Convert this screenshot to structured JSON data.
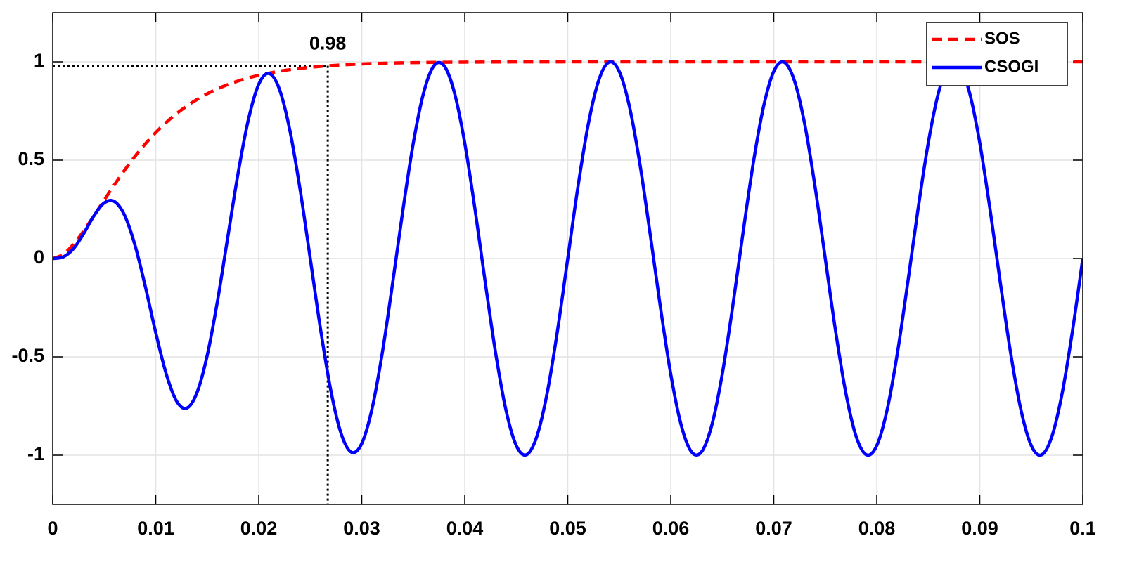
{
  "chart_data": {
    "type": "line",
    "x": [
      0,
      0.001,
      0.002,
      0.003,
      0.004,
      0.005,
      0.006,
      0.007,
      0.008,
      0.009,
      0.01,
      0.011,
      0.012,
      0.013,
      0.014,
      0.015,
      0.016,
      0.017,
      0.018,
      0.019,
      0.02,
      0.021,
      0.022,
      0.023,
      0.024,
      0.025,
      0.026,
      0.027,
      0.028,
      0.029,
      0.03,
      0.031,
      0.032,
      0.033,
      0.034,
      0.035,
      0.036,
      0.037,
      0.038,
      0.039,
      0.04,
      0.041,
      0.042,
      0.043,
      0.044,
      0.045,
      0.046,
      0.047,
      0.048,
      0.049,
      0.05,
      0.051,
      0.052,
      0.053,
      0.054,
      0.055,
      0.056,
      0.057,
      0.058,
      0.059,
      0.06,
      0.061,
      0.062,
      0.063,
      0.064,
      0.065,
      0.066,
      0.067,
      0.068,
      0.069,
      0.07,
      0.071,
      0.072,
      0.073,
      0.074,
      0.075,
      0.076,
      0.077,
      0.078,
      0.079,
      0.08,
      0.081,
      0.082,
      0.083,
      0.084,
      0.085,
      0.086,
      0.087,
      0.088,
      0.089,
      0.09,
      0.091,
      0.092,
      0.093,
      0.094,
      0.095,
      0.096,
      0.097,
      0.098,
      0.099,
      0.1
    ],
    "series": [
      {
        "name": "SOS",
        "color": "#ff0000",
        "style": "dashed",
        "values": [
          0,
          0.0206,
          0.0715,
          0.1399,
          0.2173,
          0.2973,
          0.3759,
          0.4508,
          0.5203,
          0.5836,
          0.6406,
          0.6911,
          0.7357,
          0.7746,
          0.8084,
          0.8377,
          0.8628,
          0.8843,
          0.9026,
          0.9182,
          0.9314,
          0.9426,
          0.9521,
          0.96,
          0.9667,
          0.9723,
          0.9769,
          0.9809,
          0.9841,
          0.9868,
          0.9891,
          0.991,
          0.9926,
          0.9938,
          0.9949,
          0.9958,
          0.9965,
          0.9972,
          0.9977,
          0.9981,
          0.9984,
          0.9987,
          0.9989,
          0.9991,
          0.9993,
          0.9994,
          0.9995,
          0.9996,
          0.9997,
          0.9997,
          0.9998,
          0.9998,
          0.9998,
          0.9998,
          0.9998,
          0.9998,
          0.9999,
          0.9999,
          0.9999,
          0.9999,
          0.9999,
          0.9999,
          0.9999,
          1,
          1,
          1,
          1,
          1,
          1,
          1,
          1,
          1,
          1,
          1,
          1,
          1,
          1,
          1,
          1,
          1,
          1,
          1,
          1,
          1,
          1,
          1,
          1,
          1,
          1,
          1,
          1,
          1,
          1,
          1,
          1,
          1,
          1,
          1,
          1,
          1,
          1
        ]
      },
      {
        "name": "CSOGI",
        "color": "#0000ff",
        "style": "solid",
        "values": [
          0,
          0.0076,
          0.0489,
          0.1266,
          0.2169,
          0.2828,
          0.2896,
          0.2172,
          0.0652,
          -0.1451,
          -0.3765,
          -0.5835,
          -0.7227,
          -0.7609,
          -0.6825,
          -0.4924,
          -0.2146,
          0.1108,
          0.4349,
          0.7075,
          0.8859,
          0.9407,
          0.8615,
          0.6571,
          0.3558,
          0,
          -0.3596,
          -0.6714,
          -0.8904,
          -0.9848,
          -0.9407,
          -0.7636,
          -0.4782,
          -0.1245,
          0.2474,
          0.5853,
          0.8413,
          0.9796,
          0.98,
          0.8427,
          0.5869,
          0.2484,
          -0.1252,
          -0.4814,
          -0.77,
          -0.9505,
          -0.9975,
          -0.9044,
          -0.6843,
          -0.368,
          0,
          0.3681,
          0.6845,
          0.9048,
          0.998,
          0.9511,
          0.7705,
          0.4818,
          0.1253,
          -0.2487,
          -0.5878,
          -0.8443,
          -0.9823,
          -0.9823,
          -0.8443,
          -0.5878,
          -0.2487,
          0.1253,
          0.4818,
          0.7705,
          0.9511,
          0.998,
          0.9048,
          0.6845,
          0.3681,
          0,
          -0.3681,
          -0.6845,
          -0.9048,
          -0.998,
          -0.9511,
          -0.7705,
          -0.4818,
          -0.1253,
          0.2487,
          0.5878,
          0.8443,
          0.9823,
          0.9823,
          0.8443,
          0.5878,
          0.2487,
          -0.1253,
          -0.4818,
          -0.7705,
          -0.9511,
          -0.998,
          -0.9048,
          -0.6845,
          -0.3681,
          0
        ]
      }
    ],
    "xlim": [
      0,
      0.1
    ],
    "ylim": [
      -1.25,
      1.25
    ],
    "xticks": [
      0,
      0.01,
      0.02,
      0.03,
      0.04,
      0.05,
      0.06,
      0.07,
      0.08,
      0.09,
      0.1
    ],
    "yticks": [
      -1,
      -0.5,
      0,
      0.5,
      1
    ],
    "grid": true,
    "legend": "upper right",
    "annotation": {
      "text": "0.98",
      "x": 0.0267,
      "y": 0.98
    }
  }
}
